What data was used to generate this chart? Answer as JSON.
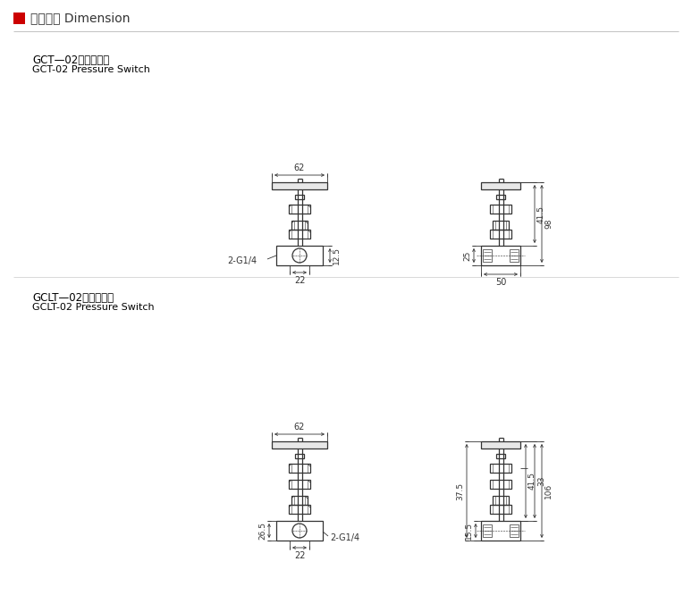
{
  "title_cn": "外型尺寸",
  "title_en": "Dimension",
  "title_color": "#000000",
  "red_square_color": "#cc0000",
  "background_color": "#ffffff",
  "line_color": "#333333",
  "section1_label_cn": "GCT—02压力表开关",
  "section1_label_en": "GCT-02 Pressure Switch",
  "section2_label_cn": "GCLT—02压力表开关",
  "section2_label_en": "GCLT-02 Pressure Switch",
  "dim_62": "62",
  "dim_22": "22",
  "dim_2G14": "2-G1/4",
  "dim_12_5": "12.5",
  "dim_25": "25",
  "dim_41_5": "41.5",
  "dim_98": "98",
  "dim_50": "50",
  "dim_26_5": "26.5",
  "dim_37_5": "37.5",
  "dim_15_5": "15.5",
  "dim_33": "33",
  "dim_106": "106",
  "dim_41_5b": "41.5"
}
